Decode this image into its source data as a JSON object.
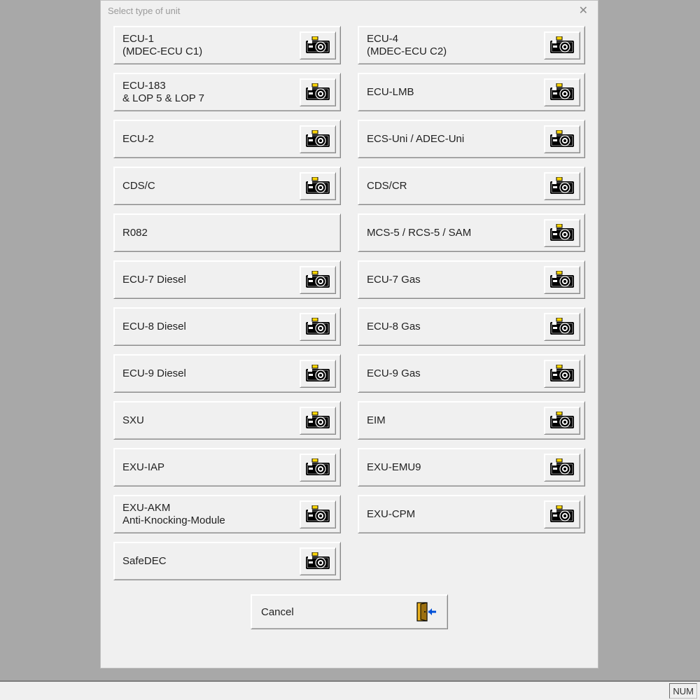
{
  "dialog": {
    "title": "Select type of unit",
    "close": "✕",
    "cancel_label": "Cancel",
    "units_left": [
      {
        "label": "ECU-1\n(MDEC-ECU C1)",
        "cam": true
      },
      {
        "label": "ECU-183\n& LOP 5 & LOP 7",
        "cam": true
      },
      {
        "label": "ECU-2",
        "cam": true
      },
      {
        "label": "CDS/C",
        "cam": true
      },
      {
        "label": "R082",
        "cam": false
      },
      {
        "label": "ECU-7 Diesel",
        "cam": true
      },
      {
        "label": "ECU-8 Diesel",
        "cam": true
      },
      {
        "label": "ECU-9 Diesel",
        "cam": true
      },
      {
        "label": "SXU",
        "cam": true
      },
      {
        "label": "EXU-IAP",
        "cam": true
      },
      {
        "label": "EXU-AKM\nAnti-Knocking-Module",
        "cam": true
      },
      {
        "label": "SafeDEC",
        "cam": true
      }
    ],
    "units_right": [
      {
        "label": "ECU-4\n(MDEC-ECU C2)",
        "cam": true
      },
      {
        "label": "ECU-LMB",
        "cam": true
      },
      {
        "label": "ECS-Uni / ADEC-Uni",
        "cam": true
      },
      {
        "label": "CDS/CR",
        "cam": true
      },
      {
        "label": "MCS-5 / RCS-5 / SAM",
        "cam": true
      },
      {
        "label": "ECU-7 Gas",
        "cam": true
      },
      {
        "label": "ECU-8 Gas",
        "cam": true
      },
      {
        "label": "ECU-9 Gas",
        "cam": true
      },
      {
        "label": "EIM",
        "cam": true
      },
      {
        "label": "EXU-EMU9",
        "cam": true
      },
      {
        "label": "EXU-CPM",
        "cam": true
      }
    ]
  },
  "statusbar": {
    "num": "NUM"
  },
  "colors": {
    "bg": "#a8a8a8",
    "dialog_bg": "#f0f0f0",
    "border_light": "#ffffff",
    "border_dark": "#888888",
    "flash_yellow": "#ffd800",
    "door_yellow": "#e8b020",
    "door_blue": "#0050d8"
  }
}
